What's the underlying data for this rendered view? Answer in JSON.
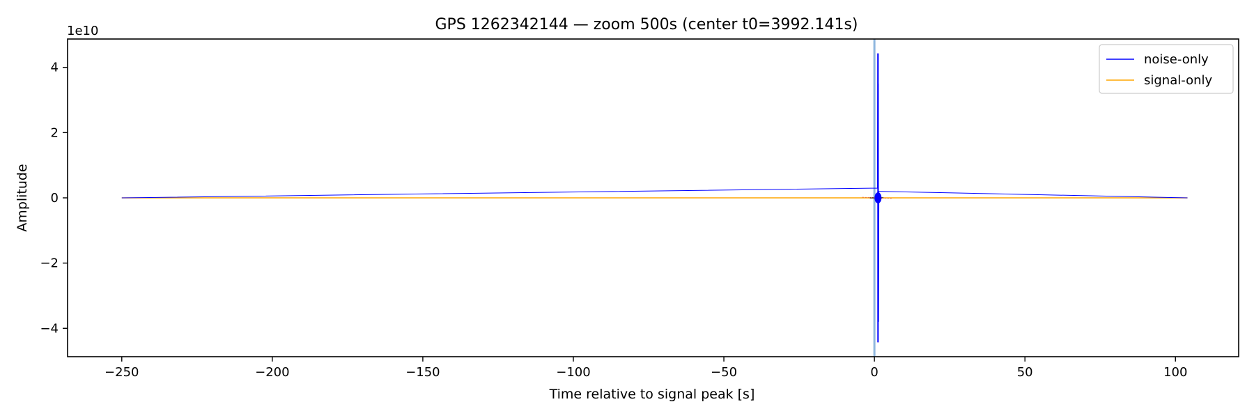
{
  "chart_data": {
    "type": "line",
    "title": "GPS 1262342144 — zoom 500s (center t0=3992.141s)",
    "xlabel": "Time relative to signal peak [s]",
    "ylabel": "Amplitude",
    "y_offset_label": "1e10",
    "xlim": [
      -268,
      121
    ],
    "ylim": [
      -4.87,
      4.87
    ],
    "y_scale_factor": 10000000000.0,
    "x_ticks": [
      -250,
      -200,
      -150,
      -100,
      -50,
      0,
      50,
      100
    ],
    "x_tick_labels": [
      "−250",
      "−200",
      "−150",
      "−100",
      "−50",
      "0",
      "50",
      "100"
    ],
    "y_ticks": [
      -4,
      -2,
      0,
      2,
      4
    ],
    "y_tick_labels": [
      "−4",
      "−2",
      "0",
      "2",
      "4"
    ],
    "grid": false,
    "legend_position": "top-right",
    "vertical_marker_x": 0,
    "colors": {
      "noise": "#0000ff",
      "signal": "#ffa500",
      "marker": "#8fb7de",
      "residual": "#000000"
    },
    "series": [
      {
        "name": "noise-only",
        "color": "#0000ff",
        "spike": {
          "x": 1.2,
          "y_max": 4.43,
          "y_min": -4.43
        },
        "x": [
          -250,
          1.0,
          1.1,
          1.2,
          1.3,
          1.4,
          1.5,
          104
        ],
        "values": [
          0,
          0.3,
          4.43,
          -4.43,
          3.5,
          -3.8,
          0.2,
          0
        ]
      },
      {
        "name": "signal-only",
        "color": "#ffa500",
        "x": [
          -250,
          104
        ],
        "values": [
          0,
          0
        ]
      }
    ]
  }
}
